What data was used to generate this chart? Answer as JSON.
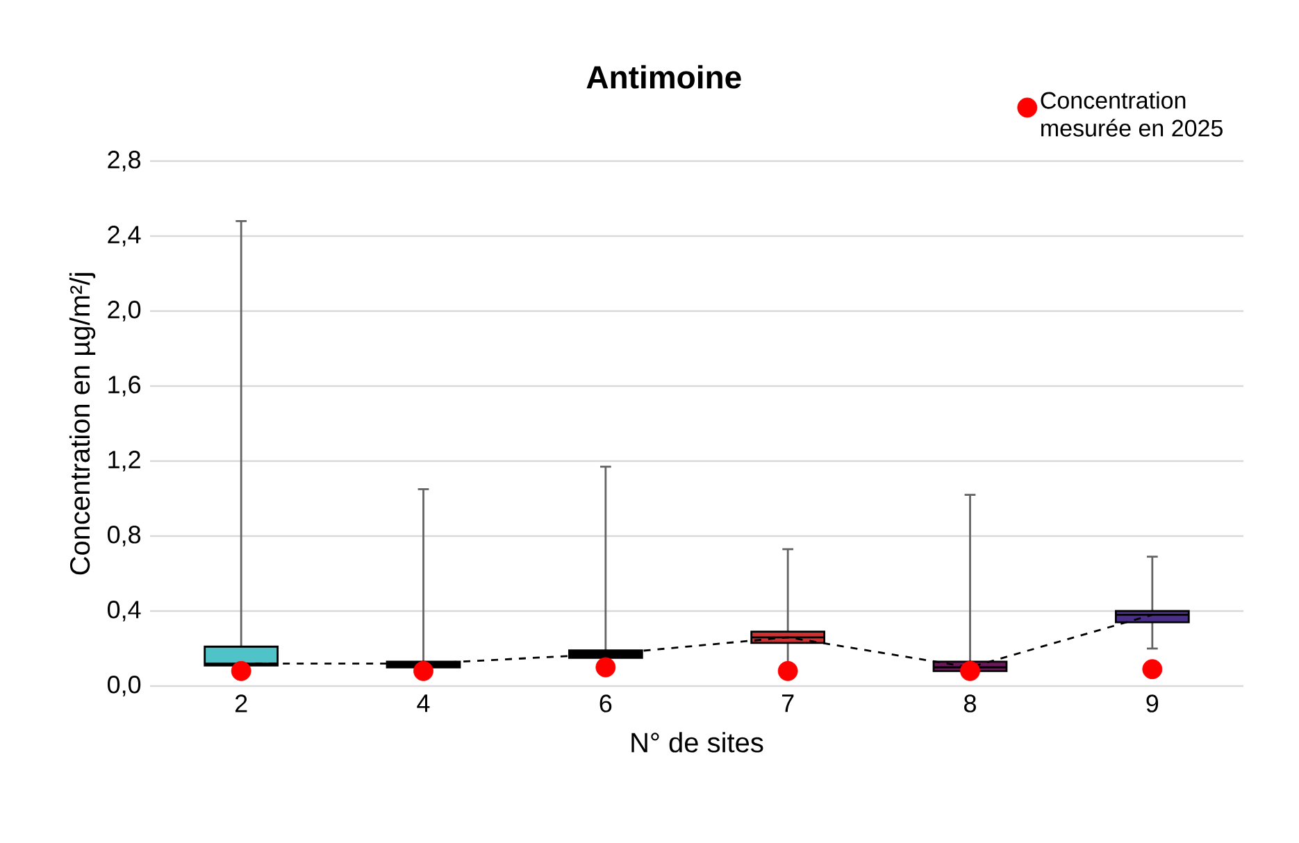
{
  "chart_data": {
    "type": "box",
    "title": "Antimoine",
    "xlabel": "N° de sites",
    "ylabel": "Concentration en µg/m²/j",
    "categories": [
      "2",
      "4",
      "6",
      "7",
      "8",
      "9"
    ],
    "boxes": [
      {
        "low": 0.11,
        "q1": 0.11,
        "median": 0.12,
        "q3": 0.21,
        "high": 2.48
      },
      {
        "low": 0.1,
        "q1": 0.1,
        "median": 0.12,
        "q3": 0.13,
        "high": 1.05
      },
      {
        "low": 0.15,
        "q1": 0.15,
        "median": 0.17,
        "q3": 0.19,
        "high": 1.17
      },
      {
        "low": 0.08,
        "q1": 0.23,
        "median": 0.26,
        "q3": 0.29,
        "high": 0.73
      },
      {
        "low": 0.08,
        "q1": 0.08,
        "median": 0.1,
        "q3": 0.13,
        "high": 1.02
      },
      {
        "low": 0.2,
        "q1": 0.34,
        "median": 0.38,
        "q3": 0.4,
        "high": 0.69
      }
    ],
    "colors": [
      "#4fc3c8",
      "#000000",
      "#000000",
      "#d03030",
      "#6a1a5a",
      "#4b2e8a"
    ],
    "series": [
      {
        "type": "line",
        "color": "#000000",
        "line_style": "dashed",
        "marker": "none",
        "values": [
          0.12,
          0.12,
          0.17,
          0.26,
          0.1,
          0.38
        ]
      },
      {
        "type": "scatter",
        "name": "Concentration mesurée en 2025",
        "color": "#ff0000",
        "marker": "circle",
        "x": [
          "2",
          "4",
          "6",
          "7",
          "8",
          "9"
        ],
        "values": [
          0.08,
          0.08,
          0.1,
          0.08,
          0.08,
          0.09
        ]
      }
    ],
    "ylim": [
      0,
      2.8
    ],
    "yticks": [
      {
        "value": 0,
        "label": "0,0"
      },
      {
        "value": 0.4,
        "label": "0,4"
      },
      {
        "value": 0.8,
        "label": "0,8"
      },
      {
        "value": 1.2,
        "label": "1,2"
      },
      {
        "value": 1.6,
        "label": "1,6"
      },
      {
        "value": 2.0,
        "label": "2,0"
      },
      {
        "value": 2.4,
        "label": "2,4"
      },
      {
        "value": 2.8,
        "label": "2,8"
      }
    ],
    "grid": "y",
    "legend": "top right"
  }
}
